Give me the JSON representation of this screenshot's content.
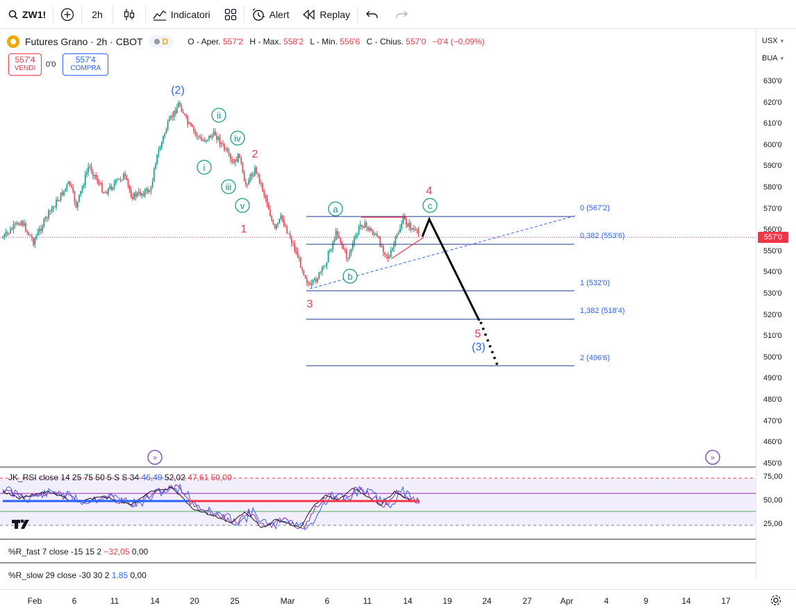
{
  "toolbar": {
    "symbol": "ZW1!",
    "interval": "2h",
    "indicators_label": "Indicatori",
    "alert_label": "Alert",
    "replay_label": "Replay"
  },
  "legend": {
    "title": "Futures Grano · 2h · CBOT",
    "badge": "D",
    "open_label": "O - Aper.",
    "open": "557'2",
    "high_label": "H - Max.",
    "high": "558'2",
    "low_label": "L - Min.",
    "low": "556'6",
    "close_label": "C - Chius.",
    "close": "557'0",
    "change": "−0'4 (−0,09%)"
  },
  "trade": {
    "sell_price": "557'4",
    "sell_label": "VENDI",
    "spread": "0'0",
    "buy_price": "557'4",
    "buy_label": "COMPRA"
  },
  "price_axis": {
    "currency": "USX",
    "unit": "BUA",
    "ticks": [
      "630'0",
      "620'0",
      "610'0",
      "600'0",
      "590'0",
      "580'0",
      "570'0",
      "560'0",
      "550'0",
      "540'0",
      "530'0",
      "520'0",
      "510'0",
      "500'0",
      "490'0",
      "480'0",
      "470'0",
      "460'0",
      "450'0"
    ],
    "last_price": "557'0"
  },
  "fib_levels": [
    {
      "label": "0 (567'2)"
    },
    {
      "label": "0,382 (553'6)"
    },
    {
      "label": "1 (532'0)"
    },
    {
      "label": "1,382 (518'4)"
    },
    {
      "label": "2 (496'6)"
    }
  ],
  "wave_labels": {
    "w2_major": "(2)",
    "w3_major": "(3)",
    "red": [
      "1",
      "2",
      "3",
      "4",
      "5"
    ],
    "green": [
      "i",
      "ii",
      "iii",
      "iv",
      "v",
      "a",
      "b",
      "c"
    ]
  },
  "rsi_pane": {
    "title": "JK_RSI close 14 25 75 50 5 S S 34",
    "v1": "46,49",
    "v2": "52,02",
    "v3": "47,61",
    "v4": "50,00",
    "ticks": [
      "75,00",
      "50,00",
      "25,00"
    ]
  },
  "r_fast_pane": {
    "title": "%R_fast 7 close -15 15 2",
    "v1": "−32,05",
    "v2": "0,00"
  },
  "r_slow_pane": {
    "title": "%R_slow 29 close -30 30 2",
    "v1": "1,85",
    "v2": "0,00"
  },
  "time_axis": [
    "Feb",
    "6",
    "11",
    "14",
    "20",
    "25",
    "Mar",
    "6",
    "11",
    "14",
    "19",
    "24",
    "27",
    "Apr",
    "4",
    "9",
    "14",
    "17"
  ],
  "colors": {
    "up": "#089981",
    "down": "#f23645",
    "accent": "#2962ff",
    "wave_green": "#089981",
    "wave_red": "#f23645",
    "wave_blue": "#2962ff"
  }
}
